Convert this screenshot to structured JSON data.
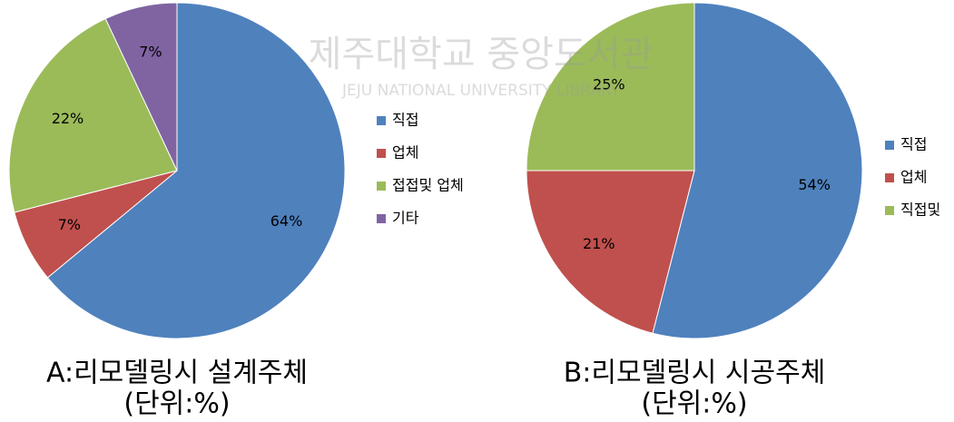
{
  "chart_data": [
    {
      "type": "pie",
      "title": "A:리모델링시 설계주체",
      "subtitle": "(단위:%)",
      "categories": [
        "직접",
        "업체",
        "접접및 업체",
        "기타"
      ],
      "values": [
        64,
        7,
        22,
        7
      ],
      "value_labels": [
        "64%",
        "7%",
        "22%",
        "7%"
      ],
      "colors": [
        "#4f81bd",
        "#c0504d",
        "#9bbb59",
        "#8064a2"
      ],
      "legend": "right"
    },
    {
      "type": "pie",
      "title": "B:리모델링시 시공주체",
      "subtitle": "(단위:%)",
      "categories": [
        "직접",
        "업체",
        "직접및"
      ],
      "values": [
        54,
        21,
        25
      ],
      "value_labels": [
        "54%",
        "21%",
        "25%"
      ],
      "colors": [
        "#4f81bd",
        "#c0504d",
        "#9bbb59"
      ],
      "legend": "right"
    }
  ],
  "watermark": {
    "title": "제주대학교 중앙도서관",
    "subtitle": "JEJU NATIONAL UNIVERSITY LIBRARY"
  }
}
